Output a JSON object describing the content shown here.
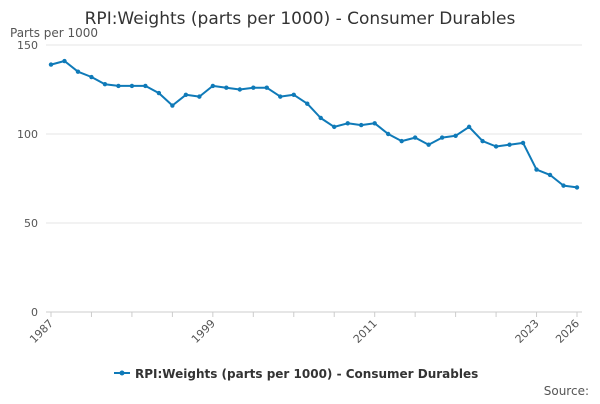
{
  "chart_data": {
    "type": "line",
    "title": "RPI:Weights (parts per 1000) - Consumer Durables",
    "ylabel": "Parts per 1000",
    "xlabel": "",
    "ylim": [
      0,
      150
    ],
    "yticks": [
      "0",
      "50",
      "100",
      "150"
    ],
    "xlim": [
      1987,
      2026
    ],
    "xticks": [
      "1987",
      "1999",
      "2011",
      "2023",
      "2026"
    ],
    "grid": true,
    "legend_position": "bottom",
    "source_label": "Source:",
    "series": [
      {
        "name": "RPI:Weights (parts per 1000) - Consumer Durables",
        "color": "#0f7ab8",
        "x": [
          1987,
          1988,
          1989,
          1990,
          1991,
          1992,
          1993,
          1994,
          1995,
          1996,
          1997,
          1998,
          1999,
          2000,
          2001,
          2002,
          2003,
          2004,
          2005,
          2006,
          2007,
          2008,
          2009,
          2010,
          2011,
          2012,
          2013,
          2014,
          2015,
          2016,
          2017,
          2018,
          2019,
          2020,
          2021,
          2022,
          2023,
          2024,
          2025,
          2026
        ],
        "values": [
          139,
          141,
          135,
          132,
          128,
          127,
          127,
          127,
          123,
          116,
          122,
          121,
          127,
          126,
          125,
          126,
          126,
          121,
          122,
          117,
          109,
          104,
          106,
          105,
          106,
          100,
          96,
          98,
          94,
          98,
          99,
          104,
          96,
          93,
          94,
          95,
          80,
          77,
          71,
          70
        ]
      }
    ]
  }
}
